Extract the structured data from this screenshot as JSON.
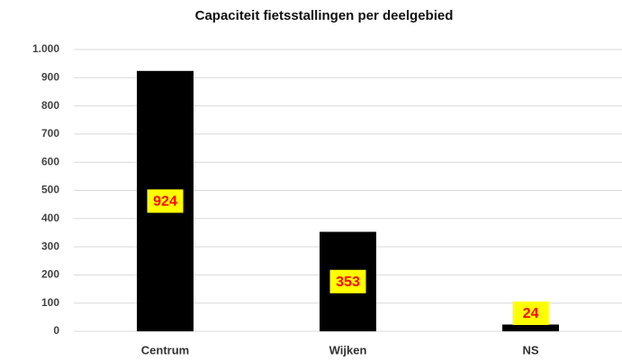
{
  "chart_data": {
    "type": "bar",
    "title": "Capaciteit fietsstallingen per deelgebied",
    "categories": [
      "Centrum",
      "Wijken",
      "NS"
    ],
    "values": [
      924,
      353,
      24
    ],
    "color": "#000000",
    "data_labels": true,
    "data_label_color": "#ff0000",
    "data_label_background": "#ffff00",
    "ylim": [
      0,
      1000
    ],
    "yticks": [
      0,
      100,
      200,
      300,
      400,
      500,
      600,
      700,
      800,
      900,
      {
        "value": 1000,
        "label": "1.000"
      }
    ],
    "grid": true
  }
}
